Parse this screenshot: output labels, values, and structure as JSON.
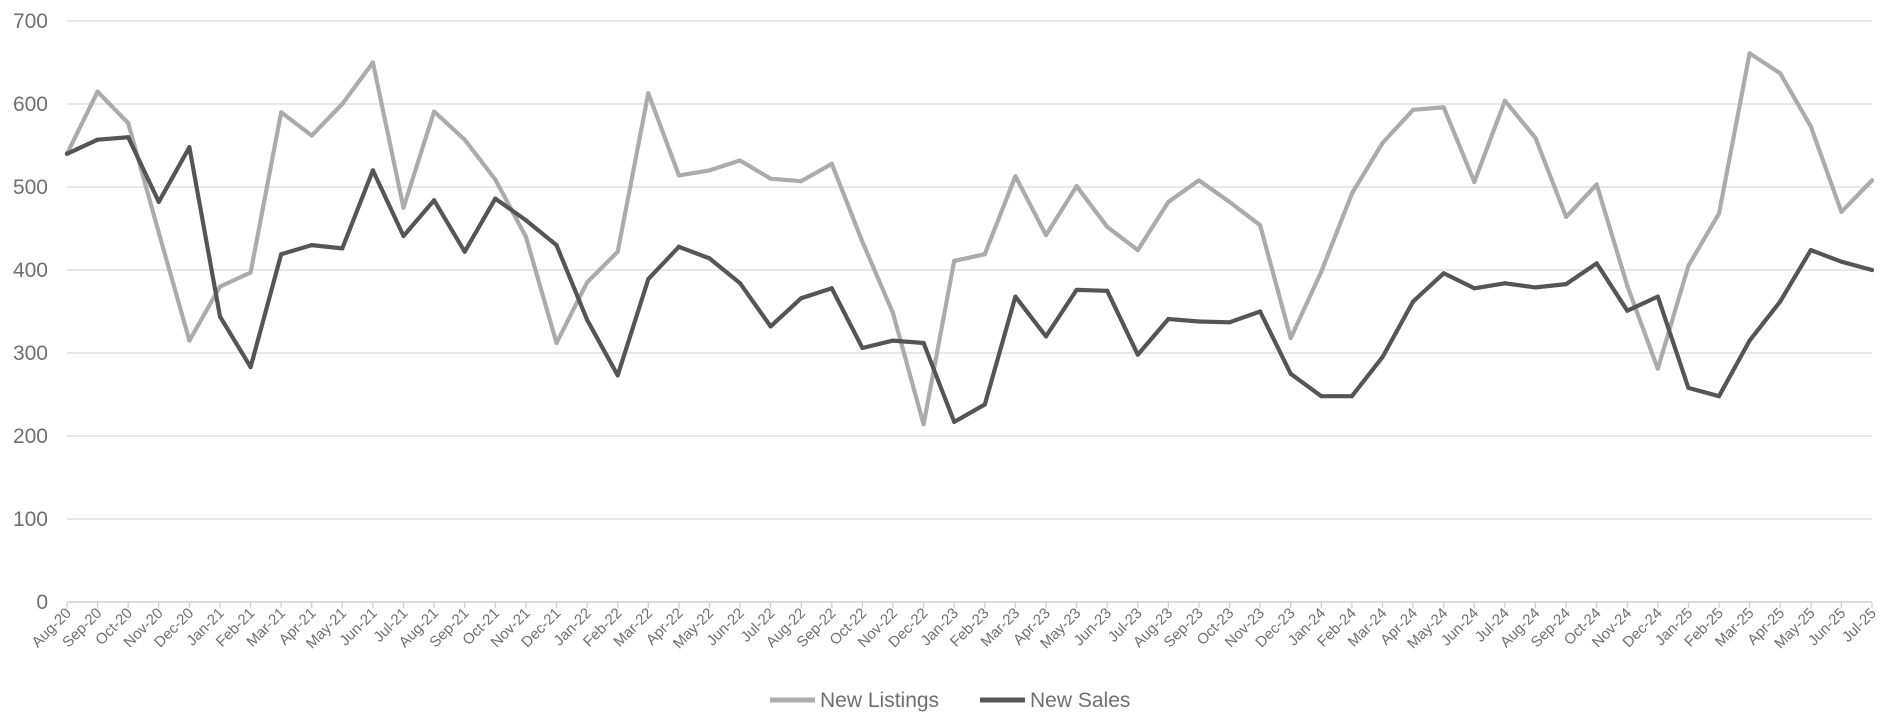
{
  "chart_data": {
    "type": "line",
    "x": [
      "Aug-20",
      "Sep-20",
      "Oct-20",
      "Nov-20",
      "Dec-20",
      "Jan-21",
      "Feb-21",
      "Mar-21",
      "Apr-21",
      "May-21",
      "Jun-21",
      "Jul-21",
      "Aug-21",
      "Sep-21",
      "Oct-21",
      "Nov-21",
      "Dec-21",
      "Jan-22",
      "Feb-22",
      "Mar-22",
      "Apr-22",
      "May-22",
      "Jun-22",
      "Jul-22",
      "Aug-22",
      "Sep-22",
      "Oct-22",
      "Nov-22",
      "Dec-22",
      "Jan-23",
      "Feb-23",
      "Mar-23",
      "Apr-23",
      "May-23",
      "Jun-23",
      "Jul-23",
      "Aug-23",
      "Sep-23",
      "Oct-23",
      "Nov-23",
      "Dec-23",
      "Jan-24",
      "Feb-24",
      "Mar-24",
      "Apr-24",
      "May-24",
      "Jun-24",
      "Jul-24",
      "Aug-24",
      "Sep-24",
      "Oct-24",
      "Nov-24",
      "Dec-24",
      "Jan-25",
      "Feb-25",
      "Mar-25",
      "Apr-25",
      "May-25",
      "Jun-25",
      "Jul-25"
    ],
    "series": [
      {
        "name": "New Listings",
        "color": "#ababab",
        "values": [
          540,
          615,
          577,
          445,
          315,
          380,
          397,
          590,
          562,
          600,
          650,
          475,
          591,
          557,
          509,
          440,
          312,
          385,
          422,
          613,
          514,
          520,
          532,
          510,
          507,
          528,
          434,
          348,
          214,
          411,
          419,
          513,
          442,
          501,
          452,
          424,
          482,
          508,
          482,
          454,
          318,
          398,
          492,
          553,
          593,
          596,
          506,
          604,
          559,
          464,
          503,
          381,
          281,
          405,
          468,
          661,
          637,
          573,
          470,
          508
        ]
      },
      {
        "name": "New Sales",
        "color": "#555555",
        "values": [
          540,
          557,
          560,
          482,
          548,
          344,
          283,
          419,
          430,
          426,
          520,
          441,
          484,
          422,
          486,
          460,
          430,
          340,
          273,
          389,
          428,
          414,
          384,
          332,
          366,
          378,
          306,
          315,
          312,
          217,
          238,
          368,
          320,
          376,
          375,
          298,
          341,
          338,
          337,
          350,
          275,
          248,
          248,
          295,
          362,
          396,
          378,
          384,
          379,
          383,
          408,
          351,
          368,
          258,
          248,
          315,
          362,
          424,
          410,
          400
        ]
      }
    ],
    "yticks": [
      0,
      100,
      200,
      300,
      400,
      500,
      600,
      700
    ],
    "ylim": [
      0,
      700
    ],
    "grid": true,
    "legend_position": "bottom-center",
    "title": "",
    "xlabel": "",
    "ylabel": ""
  }
}
